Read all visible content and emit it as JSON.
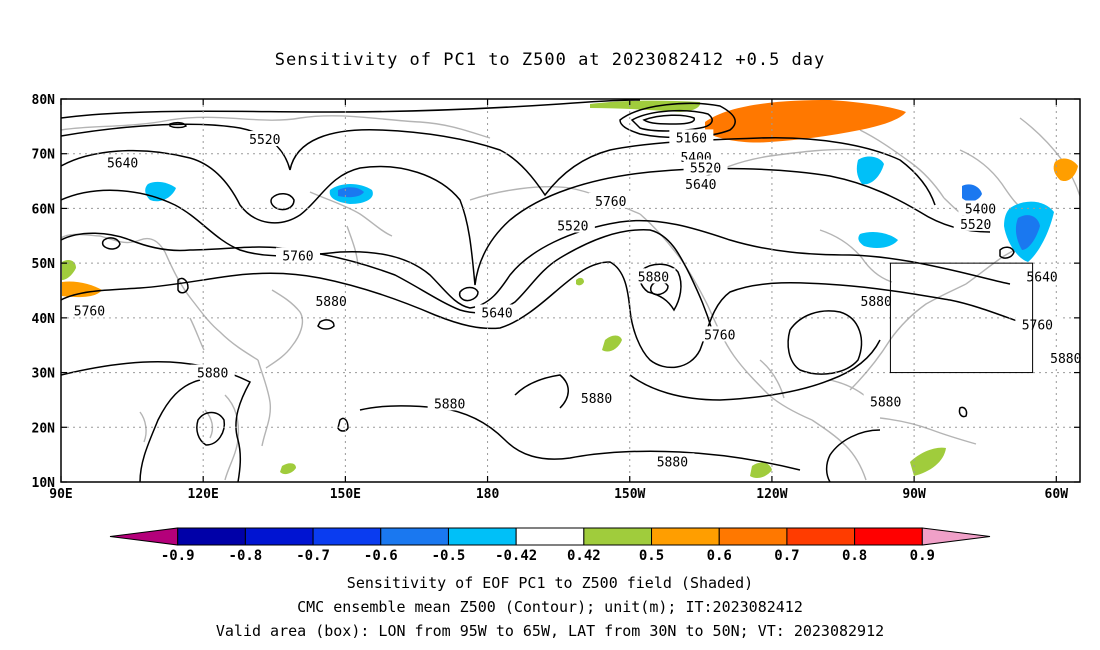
{
  "title": "Sensitivity of PC1 to Z500 at 2023082412 +0.5 day",
  "map": {
    "lon_range": [
      90,
      305
    ],
    "lat_range": [
      10,
      80
    ],
    "lat_ticks": [
      {
        "lat": 80,
        "label": "80N"
      },
      {
        "lat": 70,
        "label": "70N"
      },
      {
        "lat": 60,
        "label": "60N"
      },
      {
        "lat": 50,
        "label": "50N"
      },
      {
        "lat": 40,
        "label": "40N"
      },
      {
        "lat": 30,
        "label": "30N"
      },
      {
        "lat": 20,
        "label": "20N"
      },
      {
        "lat": 10,
        "label": "10N"
      }
    ],
    "lon_ticks": [
      {
        "lon": 90,
        "label": "90E"
      },
      {
        "lon": 120,
        "label": "120E"
      },
      {
        "lon": 150,
        "label": "150E"
      },
      {
        "lon": 180,
        "label": "180"
      },
      {
        "lon": 210,
        "label": "150W"
      },
      {
        "lon": 240,
        "label": "120W"
      },
      {
        "lon": 270,
        "label": "90W"
      },
      {
        "lon": 300,
        "label": "60W"
      }
    ],
    "valid_box": {
      "lon_min": 265,
      "lon_max": 295,
      "lat_min": 30,
      "lat_max": 50
    },
    "contour_labels": [
      {
        "text": "5520",
        "lon": 133,
        "lat": 72.5
      },
      {
        "text": "5640",
        "lon": 103,
        "lat": 68.2
      },
      {
        "text": "5160",
        "lon": 223,
        "lat": 72.8
      },
      {
        "text": "5400",
        "lon": 224,
        "lat": 69.2
      },
      {
        "text": "5520",
        "lon": 226,
        "lat": 67.3
      },
      {
        "text": "5640",
        "lon": 225,
        "lat": 64.3
      },
      {
        "text": "5760",
        "lon": 206,
        "lat": 61.2
      },
      {
        "text": "5520",
        "lon": 198,
        "lat": 56.7
      },
      {
        "text": "5400",
        "lon": 284,
        "lat": 59.8
      },
      {
        "text": "5520",
        "lon": 283,
        "lat": 57.0
      },
      {
        "text": "5640",
        "lon": 297,
        "lat": 47.4
      },
      {
        "text": "5760",
        "lon": 140,
        "lat": 51.2
      },
      {
        "text": "5880",
        "lon": 147,
        "lat": 42.9
      },
      {
        "text": "5640",
        "lon": 182,
        "lat": 40.8
      },
      {
        "text": "5880",
        "lon": 215,
        "lat": 47.4
      },
      {
        "text": "5760",
        "lon": 229,
        "lat": 36.8
      },
      {
        "text": "5880",
        "lon": 262,
        "lat": 42.9
      },
      {
        "text": "5760",
        "lon": 96,
        "lat": 41.2
      },
      {
        "text": "5760",
        "lon": 296,
        "lat": 38.6
      },
      {
        "text": "5880",
        "lon": 302,
        "lat": 32.5
      },
      {
        "text": "5880",
        "lon": 122,
        "lat": 29.8
      },
      {
        "text": "5880",
        "lon": 172,
        "lat": 24.2
      },
      {
        "text": "5880",
        "lon": 203,
        "lat": 25.2
      },
      {
        "text": "5880",
        "lon": 264,
        "lat": 24.5
      },
      {
        "text": "5880",
        "lon": 219,
        "lat": 13.6
      }
    ]
  },
  "colorbar": {
    "ticks": [
      "-0.9",
      "-0.8",
      "-0.7",
      "-0.6",
      "-0.5",
      "-0.42",
      "0.42",
      "0.5",
      "0.6",
      "0.7",
      "0.8",
      "0.9"
    ],
    "colors": [
      "#b4007a",
      "#0000a8",
      "#0014d2",
      "#0a3cf0",
      "#1a78f0",
      "#00c0f8",
      "#ffffff",
      "#a0cc3c",
      "#ff9e00",
      "#ff7800",
      "#ff3c00",
      "#ff0000",
      "#f0a0c8"
    ],
    "names": {
      "negative": "sensitivity-negative",
      "positive": "sensitivity-positive"
    }
  },
  "captions": {
    "line1": "Sensitivity of EOF PC1 to Z500 field (Shaded)",
    "line2": "CMC ensemble mean Z500 (Contour); unit(m); IT:2023082412",
    "line3": "Valid area (box): LON from 95W to 65W, LAT from 30N to 50N; VT: 2023082912"
  }
}
